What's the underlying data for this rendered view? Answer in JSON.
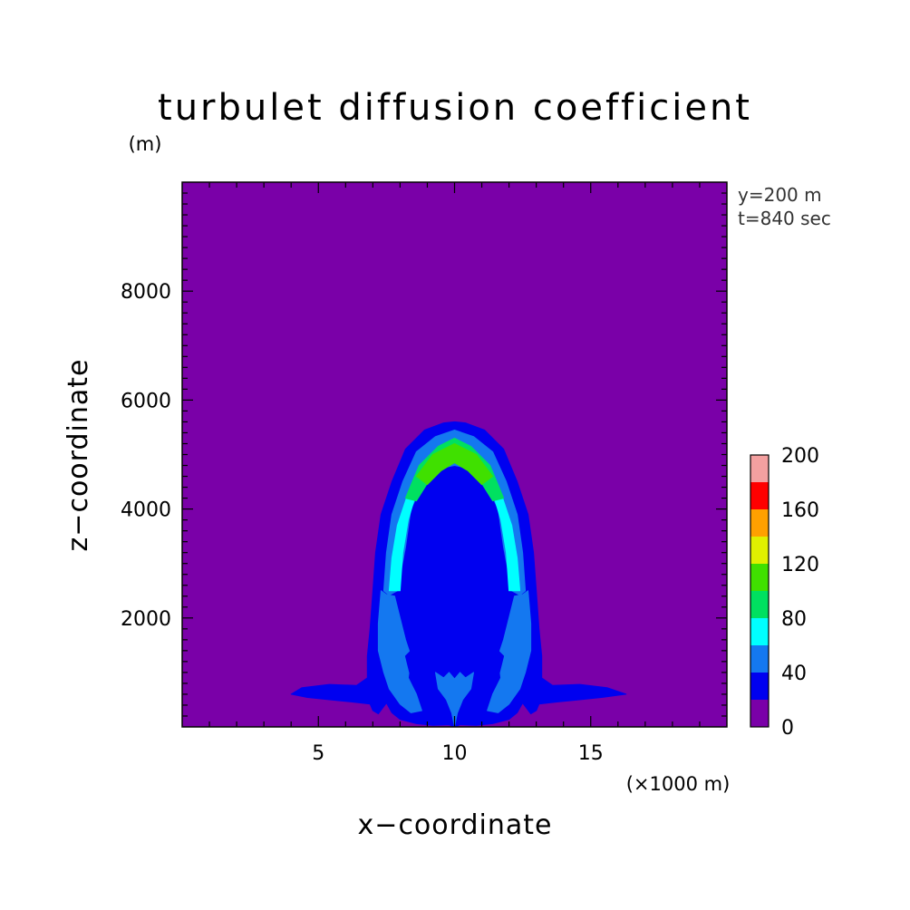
{
  "chart_data": {
    "type": "contour",
    "title": "turbulet diffusion coefficient",
    "xlabel": "x−coordinate",
    "ylabel": "z−coordinate",
    "x_unit": "(×1000 m)",
    "y_unit": "(m)",
    "xlim": [
      0,
      20
    ],
    "ylim": [
      0,
      10000
    ],
    "x_ticks": [
      5,
      10,
      15
    ],
    "y_ticks": [
      2000,
      4000,
      6000,
      8000
    ],
    "annotations": [
      "y=200 m",
      "t=840 sec"
    ],
    "grid": false,
    "legend": {
      "type": "colorbar",
      "placement": "right",
      "levels": [
        0,
        20,
        40,
        60,
        80,
        100,
        120,
        140,
        160,
        180,
        200
      ],
      "tick_labels": [
        "0",
        "40",
        "80",
        "120",
        "160",
        "200"
      ],
      "colors": [
        "#7a00a8",
        "#0000f0",
        "#1478f0",
        "#00ffff",
        "#00e060",
        "#40e000",
        "#e0f000",
        "#ffa000",
        "#ff0000",
        "#f4a0a0"
      ]
    },
    "field": {
      "background_level": 0,
      "regions": [
        {
          "name": "outer-plume-envelope",
          "level_index": 1,
          "points": [
            [
              4.0,
              600
            ],
            [
              4.6,
              540
            ],
            [
              5.4,
              500
            ],
            [
              6.2,
              460
            ],
            [
              6.9,
              420
            ],
            [
              7.0,
              300
            ],
            [
              7.2,
              240
            ],
            [
              7.5,
              440
            ],
            [
              7.7,
              260
            ],
            [
              8.0,
              140
            ],
            [
              8.6,
              60
            ],
            [
              9.2,
              30
            ],
            [
              9.8,
              40
            ],
            [
              10.0,
              0
            ],
            [
              10.2,
              40
            ],
            [
              10.8,
              30
            ],
            [
              11.4,
              60
            ],
            [
              12.0,
              140
            ],
            [
              12.3,
              260
            ],
            [
              12.5,
              440
            ],
            [
              12.8,
              240
            ],
            [
              13.0,
              300
            ],
            [
              13.1,
              420
            ],
            [
              13.8,
              460
            ],
            [
              14.6,
              500
            ],
            [
              15.4,
              540
            ],
            [
              16.3,
              600
            ],
            [
              15.6,
              720
            ],
            [
              14.6,
              780
            ],
            [
              13.6,
              760
            ],
            [
              13.2,
              900
            ],
            [
              13.2,
              1300
            ],
            [
              13.1,
              1800
            ],
            [
              13.0,
              2500
            ],
            [
              12.9,
              3200
            ],
            [
              12.7,
              3900
            ],
            [
              12.3,
              4500
            ],
            [
              11.8,
              5100
            ],
            [
              11.1,
              5450
            ],
            [
              10.4,
              5580
            ],
            [
              10.0,
              5600
            ],
            [
              9.6,
              5580
            ],
            [
              8.9,
              5450
            ],
            [
              8.2,
              5100
            ],
            [
              7.7,
              4500
            ],
            [
              7.3,
              3900
            ],
            [
              7.1,
              3200
            ],
            [
              7.0,
              2500
            ],
            [
              6.9,
              1800
            ],
            [
              6.8,
              1300
            ],
            [
              6.8,
              900
            ],
            [
              6.4,
              760
            ],
            [
              5.4,
              780
            ],
            [
              4.4,
              720
            ]
          ]
        },
        {
          "name": "upper-arch-band",
          "level_index": 2,
          "points": [
            [
              7.4,
              2500
            ],
            [
              7.5,
              3200
            ],
            [
              7.7,
              3900
            ],
            [
              8.1,
              4500
            ],
            [
              8.6,
              5050
            ],
            [
              9.3,
              5330
            ],
            [
              10.0,
              5450
            ],
            [
              10.7,
              5330
            ],
            [
              11.4,
              5050
            ],
            [
              11.9,
              4500
            ],
            [
              12.3,
              3900
            ],
            [
              12.5,
              3200
            ],
            [
              12.6,
              2500
            ],
            [
              12.4,
              2420
            ],
            [
              12.1,
              2500
            ],
            [
              11.8,
              3300
            ],
            [
              11.6,
              4000
            ],
            [
              11.1,
              4520
            ],
            [
              10.5,
              4750
            ],
            [
              10.0,
              4800
            ],
            [
              9.5,
              4750
            ],
            [
              8.9,
              4520
            ],
            [
              8.4,
              4000
            ],
            [
              8.2,
              3300
            ],
            [
              7.9,
              2500
            ],
            [
              7.6,
              2420
            ]
          ]
        },
        {
          "name": "lower-left-column",
          "level_index": 2,
          "points": [
            [
              7.3,
              2500
            ],
            [
              7.5,
              2430
            ],
            [
              7.8,
              2400
            ],
            [
              8.0,
              2000
            ],
            [
              8.2,
              1600
            ],
            [
              8.4,
              1300
            ],
            [
              8.3,
              900
            ],
            [
              8.6,
              600
            ],
            [
              8.8,
              300
            ],
            [
              8.4,
              260
            ],
            [
              8.0,
              420
            ],
            [
              7.6,
              700
            ],
            [
              7.4,
              1000
            ],
            [
              7.2,
              1400
            ],
            [
              7.2,
              1900
            ]
          ]
        },
        {
          "name": "lower-right-column",
          "level_index": 2,
          "points": [
            [
              12.7,
              2500
            ],
            [
              12.5,
              2430
            ],
            [
              12.2,
              2400
            ],
            [
              12.0,
              2000
            ],
            [
              11.8,
              1600
            ],
            [
              11.6,
              1300
            ],
            [
              11.7,
              900
            ],
            [
              11.4,
              600
            ],
            [
              11.2,
              300
            ],
            [
              11.6,
              260
            ],
            [
              12.0,
              420
            ],
            [
              12.4,
              700
            ],
            [
              12.6,
              1000
            ],
            [
              12.8,
              1400
            ],
            [
              12.8,
              1900
            ]
          ]
        },
        {
          "name": "arch-left-core",
          "level_index": 3,
          "points": [
            [
              7.6,
              2500
            ],
            [
              7.7,
              3100
            ],
            [
              7.9,
              3700
            ],
            [
              8.3,
              4300
            ],
            [
              8.6,
              4300
            ],
            [
              8.3,
              3800
            ],
            [
              8.1,
              3200
            ],
            [
              8.0,
              2500
            ]
          ]
        },
        {
          "name": "arch-right-core",
          "level_index": 3,
          "points": [
            [
              12.4,
              2500
            ],
            [
              12.3,
              3100
            ],
            [
              12.1,
              3700
            ],
            [
              11.7,
              4300
            ],
            [
              11.4,
              4300
            ],
            [
              11.7,
              3800
            ],
            [
              11.9,
              3200
            ],
            [
              12.0,
              2500
            ]
          ]
        },
        {
          "name": "arch-top-core",
          "level_index": 4,
          "points": [
            [
              8.2,
              4200
            ],
            [
              8.7,
              4800
            ],
            [
              9.4,
              5150
            ],
            [
              10.0,
              5300
            ],
            [
              10.6,
              5150
            ],
            [
              11.3,
              4800
            ],
            [
              11.8,
              4200
            ],
            [
              11.4,
              4150
            ],
            [
              10.9,
              4550
            ],
            [
              10.4,
              4780
            ],
            [
              10.0,
              4850
            ],
            [
              9.6,
              4780
            ],
            [
              9.1,
              4550
            ],
            [
              8.6,
              4150
            ]
          ]
        },
        {
          "name": "arch-top-peak",
          "level_index": 5,
          "points": [
            [
              8.6,
              4600
            ],
            [
              9.2,
              5000
            ],
            [
              10.0,
              5200
            ],
            [
              10.8,
              5000
            ],
            [
              11.4,
              4600
            ],
            [
              11.0,
              4450
            ],
            [
              10.5,
              4700
            ],
            [
              10.0,
              4850
            ],
            [
              9.5,
              4700
            ],
            [
              9.0,
              4450
            ]
          ]
        },
        {
          "name": "inner-wake",
          "level_index": 1,
          "points": [
            [
              8.6,
              1500
            ],
            [
              9.1,
              1550
            ],
            [
              9.6,
              1450
            ],
            [
              10.0,
              1500
            ],
            [
              10.4,
              1450
            ],
            [
              10.9,
              1550
            ],
            [
              11.4,
              1500
            ],
            [
              11.8,
              1300
            ],
            [
              11.6,
              900
            ],
            [
              11.2,
              500
            ],
            [
              10.6,
              300
            ],
            [
              10.2,
              150
            ],
            [
              10.0,
              0
            ],
            [
              9.8,
              150
            ],
            [
              9.4,
              300
            ],
            [
              8.8,
              500
            ],
            [
              8.4,
              900
            ],
            [
              8.2,
              1300
            ]
          ]
        },
        {
          "name": "stem-cells",
          "level_index": 2,
          "points": [
            [
              9.3,
              1000
            ],
            [
              9.6,
              900
            ],
            [
              9.8,
              1000
            ],
            [
              10.0,
              880
            ],
            [
              10.2,
              1000
            ],
            [
              10.4,
              900
            ],
            [
              10.7,
              1000
            ],
            [
              10.6,
              700
            ],
            [
              10.3,
              500
            ],
            [
              10.1,
              250
            ],
            [
              10.0,
              0
            ],
            [
              9.9,
              250
            ],
            [
              9.7,
              500
            ],
            [
              9.4,
              700
            ]
          ]
        },
        {
          "name": "left-eddy",
          "level_index": 1,
          "points": [
            [
              9.2,
              3830
            ],
            [
              9.4,
              3830
            ],
            [
              9.5,
              3880
            ],
            [
              9.4,
              3950
            ],
            [
              9.2,
              3950
            ],
            [
              9.1,
              3880
            ]
          ]
        },
        {
          "name": "right-eddy",
          "level_index": 1,
          "points": [
            [
              10.8,
              3830
            ],
            [
              11.0,
              3830
            ],
            [
              11.1,
              3880
            ],
            [
              11.0,
              3950
            ],
            [
              10.8,
              3950
            ],
            [
              10.7,
              3880
            ]
          ]
        }
      ]
    }
  }
}
